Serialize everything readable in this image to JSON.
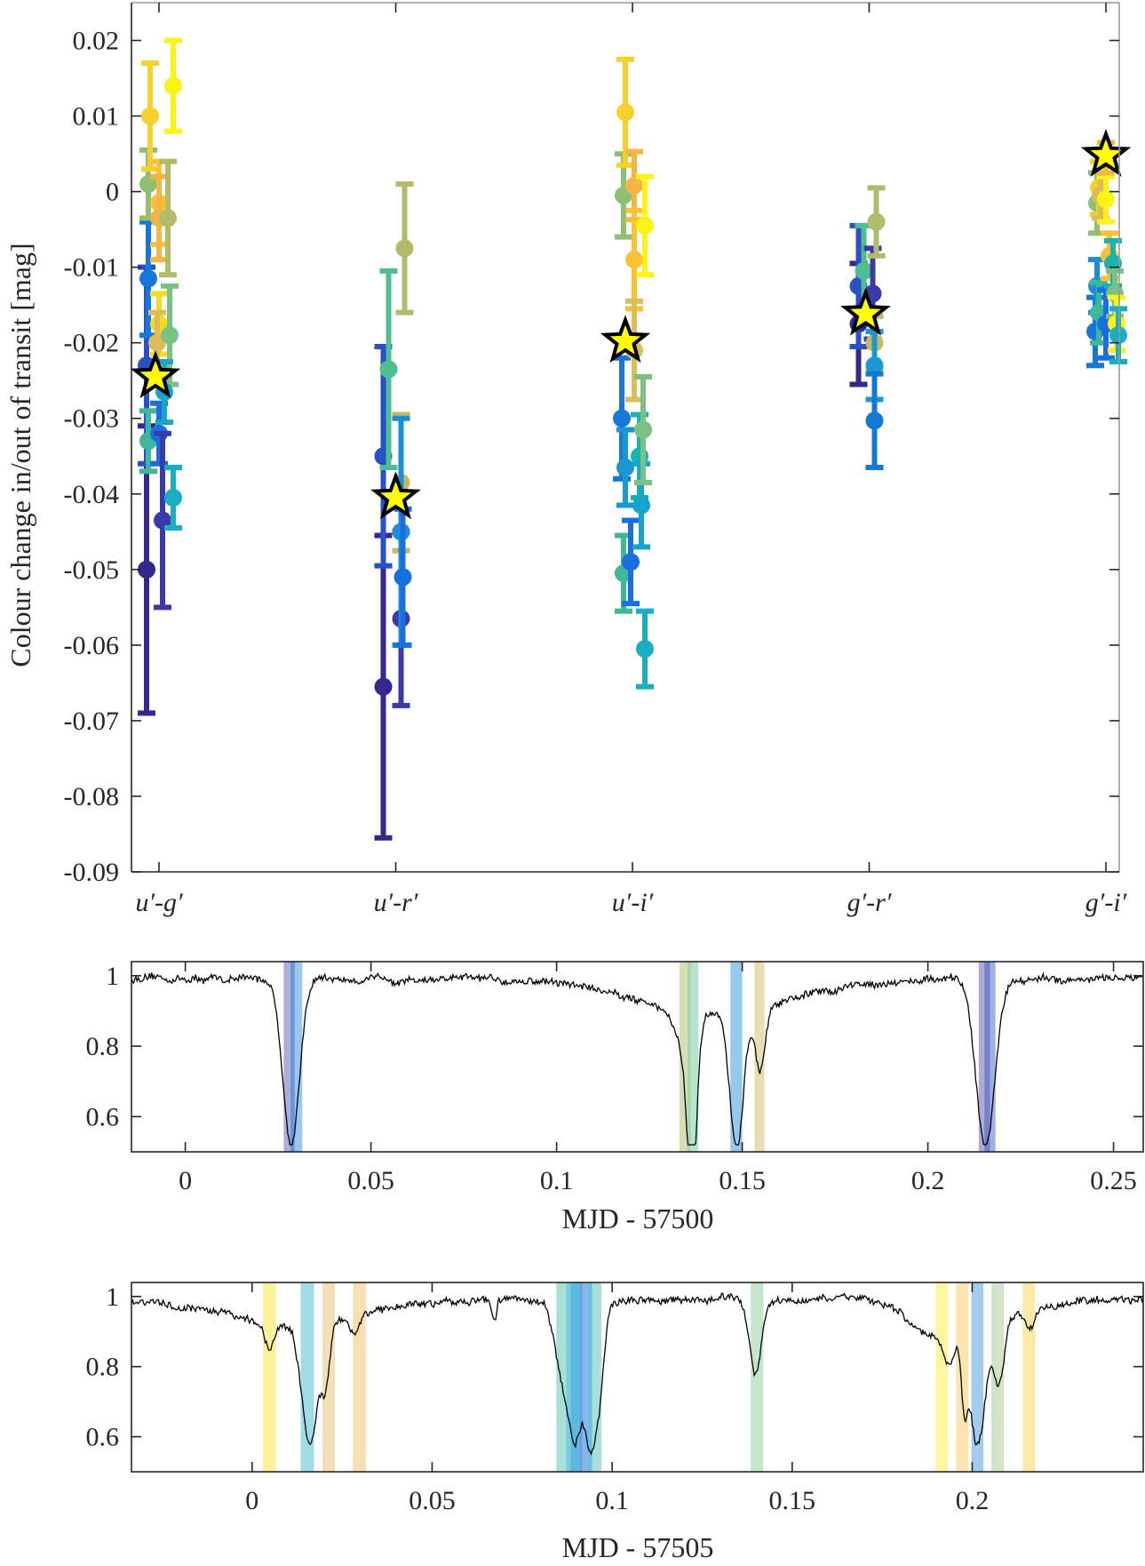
{
  "chart_data": [
    {
      "type": "scatter",
      "subtype": "errorbar",
      "title": "",
      "xlabel": "",
      "ylabel": "Colour change in/out of transit [mag]",
      "categories": [
        "u′-g′",
        "u′-r′",
        "u′-i′",
        "g′-r′",
        "g′-i′"
      ],
      "ylim": [
        -0.09,
        0.025
      ],
      "yticks": [
        0.02,
        0.01,
        0,
        -0.01,
        -0.02,
        -0.03,
        -0.04,
        -0.05,
        -0.06,
        -0.07,
        -0.08,
        -0.09
      ],
      "ytick_labels": [
        "0.02",
        "0.01",
        "0",
        "-0.01",
        "-0.02",
        "-0.03",
        "-0.04",
        "-0.05",
        "-0.06",
        "-0.07",
        "-0.08",
        "-0.09"
      ],
      "grid": false,
      "points": [
        {
          "cat": 0,
          "dx": -0.07,
          "y": -0.05,
          "err": 0.019,
          "color": "#35288c"
        },
        {
          "cat": 0,
          "dx": -0.07,
          "y": -0.023,
          "err": 0.013,
          "color": "#2a4fc8"
        },
        {
          "cat": 0,
          "dx": -0.06,
          "y": -0.0115,
          "err": 0.0075,
          "color": "#1478d8"
        },
        {
          "cat": 0,
          "dx": -0.06,
          "y": -0.033,
          "err": 0.004,
          "color": "#3db89a"
        },
        {
          "cat": 0,
          "dx": -0.06,
          "y": 0.001,
          "err": 0.0045,
          "color": "#8fbf72"
        },
        {
          "cat": 0,
          "dx": -0.05,
          "y": 0.01,
          "err": 0.007,
          "color": "#f6d12a"
        },
        {
          "cat": 0,
          "dx": 0.0,
          "y": -0.0015,
          "err": 0.0055,
          "color": "#fcc132"
        },
        {
          "cat": 0,
          "dx": 0.0,
          "y": -0.0035,
          "err": 0.0055,
          "color": "#f2b546"
        },
        {
          "cat": 0,
          "dx": 0.0,
          "y": -0.0175,
          "err": 0.004,
          "color": "#f3dc21"
        },
        {
          "cat": 0,
          "dx": -0.01,
          "y": -0.02,
          "err": 0.004,
          "color": "#dcbd58"
        },
        {
          "cat": 0,
          "dx": 0.0,
          "y": -0.032,
          "err": 0.004,
          "color": "#1a6fe0"
        },
        {
          "cat": 0,
          "dx": 0.02,
          "y": -0.0435,
          "err": 0.0115,
          "color": "#3a3aa8"
        },
        {
          "cat": 0,
          "dx": 0.05,
          "y": -0.0035,
          "err": 0.0075,
          "color": "#b2bb6a"
        },
        {
          "cat": 0,
          "dx": 0.06,
          "y": -0.019,
          "err": 0.0065,
          "color": "#7bc184"
        },
        {
          "cat": 0,
          "dx": 0.08,
          "y": 0.014,
          "err": 0.006,
          "color": "#fbf216"
        },
        {
          "cat": 0,
          "dx": 0.08,
          "y": -0.0405,
          "err": 0.004,
          "color": "#19aec2"
        },
        {
          "cat": 0,
          "dx": 0.03,
          "y": -0.0265,
          "err": 0.004,
          "color": "#17a8c8"
        },
        {
          "cat": 1,
          "dx": -0.07,
          "y": -0.0655,
          "err": 0.02,
          "color": "#35288c"
        },
        {
          "cat": 1,
          "dx": -0.07,
          "y": -0.035,
          "err": 0.0145,
          "color": "#2a4fc8"
        },
        {
          "cat": 1,
          "dx": -0.04,
          "y": -0.0235,
          "err": 0.013,
          "color": "#4fbe90"
        },
        {
          "cat": 1,
          "dx": 0.03,
          "y": -0.0565,
          "err": 0.0115,
          "color": "#3a3aa8"
        },
        {
          "cat": 1,
          "dx": 0.03,
          "y": -0.0385,
          "err": 0.009,
          "color": "#c9b85e"
        },
        {
          "cat": 1,
          "dx": 0.03,
          "y": -0.045,
          "err": 0.015,
          "color": "#1a8fd6"
        },
        {
          "cat": 1,
          "dx": 0.04,
          "y": -0.051,
          "err": 0.009,
          "color": "#1a6fe0"
        },
        {
          "cat": 1,
          "dx": 0.05,
          "y": -0.0075,
          "err": 0.0085,
          "color": "#b2bb6a"
        },
        {
          "cat": 2,
          "dx": -0.06,
          "y": -0.03,
          "err": 0.008,
          "color": "#1478d8"
        },
        {
          "cat": 2,
          "dx": -0.04,
          "y": -0.0365,
          "err": 0.005,
          "color": "#1a98d4"
        },
        {
          "cat": 2,
          "dx": -0.05,
          "y": -0.0505,
          "err": 0.005,
          "color": "#3db89a"
        },
        {
          "cat": 2,
          "dx": -0.05,
          "y": -0.0005,
          "err": 0.0055,
          "color": "#8fbf72"
        },
        {
          "cat": 2,
          "dx": -0.04,
          "y": 0.0105,
          "err": 0.007,
          "color": "#f6d12a"
        },
        {
          "cat": 2,
          "dx": -0.01,
          "y": -0.049,
          "err": 0.0055,
          "color": "#1a6fe0"
        },
        {
          "cat": 2,
          "dx": 0.01,
          "y": 0.0008,
          "err": 0.0045,
          "color": "#f2b546"
        },
        {
          "cat": 2,
          "dx": 0.01,
          "y": -0.009,
          "err": 0.0065,
          "color": "#fcc132"
        },
        {
          "cat": 2,
          "dx": 0.01,
          "y": -0.021,
          "err": 0.0065,
          "color": "#dcbd58"
        },
        {
          "cat": 2,
          "dx": 0.04,
          "y": -0.035,
          "err": 0.0055,
          "color": "#19b3b0"
        },
        {
          "cat": 2,
          "dx": 0.05,
          "y": -0.0415,
          "err": 0.0055,
          "color": "#15a4cc"
        },
        {
          "cat": 2,
          "dx": 0.06,
          "y": -0.0315,
          "err": 0.007,
          "color": "#7bc184"
        },
        {
          "cat": 2,
          "dx": 0.07,
          "y": -0.0045,
          "err": 0.0065,
          "color": "#fbf216"
        },
        {
          "cat": 2,
          "dx": 0.07,
          "y": -0.0605,
          "err": 0.005,
          "color": "#19aec2"
        },
        {
          "cat": 3,
          "dx": -0.06,
          "y": -0.0175,
          "err": 0.008,
          "color": "#35288c"
        },
        {
          "cat": 3,
          "dx": -0.06,
          "y": -0.0125,
          "err": 0.008,
          "color": "#2a4fc8"
        },
        {
          "cat": 3,
          "dx": -0.03,
          "y": -0.0105,
          "err": 0.006,
          "color": "#4fbe90"
        },
        {
          "cat": 3,
          "dx": 0.02,
          "y": -0.0135,
          "err": 0.006,
          "color": "#3a3aa8"
        },
        {
          "cat": 3,
          "dx": 0.03,
          "y": -0.02,
          "err": 0.0035,
          "color": "#c9b85e"
        },
        {
          "cat": 3,
          "dx": 0.03,
          "y": -0.023,
          "err": 0.0045,
          "color": "#1a98d4"
        },
        {
          "cat": 3,
          "dx": 0.03,
          "y": -0.0303,
          "err": 0.0062,
          "color": "#1478d8"
        },
        {
          "cat": 3,
          "dx": 0.04,
          "y": -0.004,
          "err": 0.0045,
          "color": "#b2bb6a"
        },
        {
          "cat": 4,
          "dx": -0.06,
          "y": -0.0185,
          "err": 0.0045,
          "color": "#1478d8"
        },
        {
          "cat": 4,
          "dx": -0.05,
          "y": -0.0125,
          "err": 0.0035,
          "color": "#1a8fd6"
        },
        {
          "cat": 4,
          "dx": -0.05,
          "y": -0.0015,
          "err": 0.004,
          "color": "#8fbf72"
        },
        {
          "cat": 4,
          "dx": -0.04,
          "y": 0.0005,
          "err": 0.0035,
          "color": "#f6d12a"
        },
        {
          "cat": 4,
          "dx": -0.03,
          "y": -0.0005,
          "err": 0.003,
          "color": "#dcbd58"
        },
        {
          "cat": 4,
          "dx": -0.04,
          "y": -0.016,
          "err": 0.004,
          "color": "#3db89a"
        },
        {
          "cat": 4,
          "dx": 0.0,
          "y": -0.0175,
          "err": 0.0045,
          "color": "#1a6fe0"
        },
        {
          "cat": 4,
          "dx": 0.0,
          "y": -0.001,
          "err": 0.003,
          "color": "#fbf216"
        },
        {
          "cat": 4,
          "dx": 0.0,
          "y": 0.0045,
          "err": 0.002,
          "color": "#f2b546"
        },
        {
          "cat": 4,
          "dx": 0.02,
          "y": -0.0085,
          "err": 0.003,
          "color": "#fcc132"
        },
        {
          "cat": 4,
          "dx": 0.04,
          "y": -0.0095,
          "err": 0.003,
          "color": "#19b3b0"
        },
        {
          "cat": 4,
          "dx": 0.05,
          "y": -0.0135,
          "err": 0.003,
          "color": "#7bc184"
        },
        {
          "cat": 4,
          "dx": 0.06,
          "y": -0.0175,
          "err": 0.0035,
          "color": "#fbf216"
        },
        {
          "cat": 4,
          "dx": 0.07,
          "y": -0.019,
          "err": 0.0035,
          "color": "#19aec2"
        }
      ],
      "mean_markers": [
        {
          "cat": 0,
          "dx": -0.02,
          "y": -0.0245,
          "marker": "star",
          "color": "#ffff00"
        },
        {
          "cat": 1,
          "dx": 0.0,
          "y": -0.0405,
          "marker": "star",
          "color": "#ffff00"
        },
        {
          "cat": 2,
          "dx": -0.04,
          "y": -0.0198,
          "marker": "star",
          "color": "#ffff00"
        },
        {
          "cat": 3,
          "dx": -0.02,
          "y": -0.0162,
          "marker": "star",
          "color": "#ffff00"
        },
        {
          "cat": 4,
          "dx": 0.0,
          "y": 0.0048,
          "marker": "star",
          "color": "#ffff00"
        }
      ]
    },
    {
      "type": "line",
      "title": "",
      "xlabel": "MJD - 57500",
      "ylabel": "",
      "xlim": [
        -0.0145,
        0.258
      ],
      "ylim": [
        0.5,
        1.04
      ],
      "xticks": [
        0,
        0.05,
        0.1,
        0.15,
        0.2,
        0.25
      ],
      "xtick_labels": [
        "0",
        "0.05",
        "0.1",
        "0.15",
        "0.2",
        "0.25"
      ],
      "yticks": [
        0.6,
        0.8,
        1
      ],
      "ytick_labels": [
        "0.6",
        "0.8",
        "1"
      ],
      "grid": false,
      "baseline": 0.99,
      "dips": [
        {
          "center": 0.0285,
          "depth": 0.47,
          "width": 0.0022
        },
        {
          "center": 0.1348,
          "depth": 0.12,
          "width": 0.0025
        },
        {
          "center": 0.1365,
          "depth": 0.44,
          "width": 0.0012
        },
        {
          "center": 0.1485,
          "depth": 0.39,
          "width": 0.0018
        },
        {
          "center": 0.1548,
          "depth": 0.18,
          "width": 0.0013
        },
        {
          "center": 0.143,
          "depth": 0.1,
          "width": 0.02
        },
        {
          "center": 0.2155,
          "depth": 0.48,
          "width": 0.0025
        }
      ],
      "highlight_bands": [
        {
          "x0": 0.0265,
          "x1": 0.0283,
          "color": "#aeaedd"
        },
        {
          "x0": 0.0283,
          "x1": 0.0295,
          "color": "#6a96d8"
        },
        {
          "x0": 0.0295,
          "x1": 0.0315,
          "color": "#9cc6f0"
        },
        {
          "x0": 0.1331,
          "x1": 0.1352,
          "color": "#d9ddb5"
        },
        {
          "x0": 0.1352,
          "x1": 0.1362,
          "color": "#a8d6a8"
        },
        {
          "x0": 0.1362,
          "x1": 0.1382,
          "color": "#b6e4cc"
        },
        {
          "x0": 0.1468,
          "x1": 0.15,
          "color": "#96c8ec"
        },
        {
          "x0": 0.1533,
          "x1": 0.156,
          "color": "#e5dfb2"
        },
        {
          "x0": 0.2137,
          "x1": 0.2152,
          "color": "#aeaad6"
        },
        {
          "x0": 0.2152,
          "x1": 0.2168,
          "color": "#7481cc"
        },
        {
          "x0": 0.2168,
          "x1": 0.2182,
          "color": "#a0b0e6"
        }
      ]
    },
    {
      "type": "line",
      "title": "",
      "xlabel": "MJD - 57505",
      "ylabel": "",
      "xlim": [
        -0.0335,
        0.2475
      ],
      "ylim": [
        0.5,
        1.04
      ],
      "xticks": [
        0,
        0.05,
        0.1,
        0.15,
        0.2
      ],
      "xtick_labels": [
        "0",
        "0.05",
        "0.1",
        "0.15",
        "0.2"
      ],
      "yticks": [
        0.6,
        0.8,
        1
      ],
      "ytick_labels": [
        "0.6",
        "0.8",
        "1"
      ],
      "grid": false,
      "baseline": 0.99,
      "dips": [
        {
          "center": 0.0048,
          "depth": 0.07,
          "width": 0.0015
        },
        {
          "center": 0.016,
          "depth": 0.35,
          "width": 0.0022
        },
        {
          "center": 0.0205,
          "depth": 0.16,
          "width": 0.0012
        },
        {
          "center": 0.0287,
          "depth": 0.05,
          "width": 0.0012
        },
        {
          "center": 0.012,
          "depth": 0.07,
          "width": 0.018
        },
        {
          "center": 0.087,
          "depth": 0.25,
          "width": 0.0025
        },
        {
          "center": 0.09,
          "depth": 0.26,
          "width": 0.0015
        },
        {
          "center": 0.0935,
          "depth": 0.35,
          "width": 0.0015
        },
        {
          "center": 0.0962,
          "depth": 0.27,
          "width": 0.0015
        },
        {
          "center": 0.0672,
          "depth": 0.07,
          "width": 0.0006
        },
        {
          "center": 0.1398,
          "depth": 0.21,
          "width": 0.0016
        },
        {
          "center": 0.1895,
          "depth": 0.06,
          "width": 0.006
        },
        {
          "center": 0.1935,
          "depth": 0.08,
          "width": 0.0015
        },
        {
          "center": 0.1978,
          "depth": 0.17,
          "width": 0.0008
        },
        {
          "center": 0.2015,
          "depth": 0.34,
          "width": 0.0022
        },
        {
          "center": 0.2075,
          "depth": 0.18,
          "width": 0.0014
        },
        {
          "center": 0.216,
          "depth": 0.05,
          "width": 0.0012
        },
        {
          "center": 0.201,
          "depth": 0.06,
          "width": 0.014
        }
      ],
      "highlight_bands": [
        {
          "x0": 0.003,
          "x1": 0.0066,
          "color": "#fbf29a"
        },
        {
          "x0": 0.0135,
          "x1": 0.0172,
          "color": "#a0dce6"
        },
        {
          "x0": 0.0195,
          "x1": 0.023,
          "color": "#f2dfb6"
        },
        {
          "x0": 0.028,
          "x1": 0.0316,
          "color": "#f8deb0"
        },
        {
          "x0": 0.0845,
          "x1": 0.0872,
          "color": "#a8e0d6"
        },
        {
          "x0": 0.0872,
          "x1": 0.0885,
          "color": "#78cce0"
        },
        {
          "x0": 0.0885,
          "x1": 0.0908,
          "color": "#5bb8e0"
        },
        {
          "x0": 0.0908,
          "x1": 0.0918,
          "color": "#62a6e2"
        },
        {
          "x0": 0.0918,
          "x1": 0.0932,
          "color": "#8ab4ee"
        },
        {
          "x0": 0.0932,
          "x1": 0.0945,
          "color": "#6ac0e2"
        },
        {
          "x0": 0.0945,
          "x1": 0.097,
          "color": "#a8e0d8"
        },
        {
          "x0": 0.1385,
          "x1": 0.142,
          "color": "#c6e6cc"
        },
        {
          "x0": 0.1898,
          "x1": 0.1933,
          "color": "#fbf7a0"
        },
        {
          "x0": 0.1955,
          "x1": 0.199,
          "color": "#fce4b0"
        },
        {
          "x0": 0.1998,
          "x1": 0.2031,
          "color": "#a2cbee"
        },
        {
          "x0": 0.2053,
          "x1": 0.2088,
          "color": "#d2e4c8"
        },
        {
          "x0": 0.214,
          "x1": 0.2175,
          "color": "#fceaa6"
        }
      ]
    }
  ]
}
